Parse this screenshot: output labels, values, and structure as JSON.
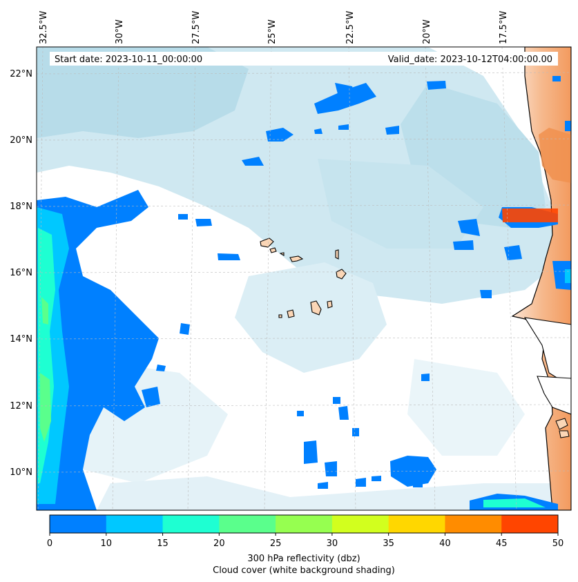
{
  "info": {
    "start_label": "Start date: 2023-10-11_00:00:00",
    "valid_label": "Valid_date: 2023-10-12T04:00:00.00"
  },
  "lon_ticks": [
    "32.5°W",
    "30°W",
    "27.5°W",
    "25°W",
    "22.5°W",
    "20°W",
    "17.5°W"
  ],
  "lat_ticks": [
    "22°N",
    "20°N",
    "18°N",
    "16°N",
    "14°N",
    "12°N",
    "10°N"
  ],
  "colorbar": {
    "tick_labels": [
      "0",
      "10",
      "15",
      "20",
      "25",
      "30",
      "35",
      "40",
      "45",
      "50"
    ],
    "colors": [
      "#0080ff",
      "#00c8ff",
      "#1effd2",
      "#5aff8c",
      "#96ff50",
      "#d2ff1e",
      "#ffd700",
      "#ff8c00",
      "#ff4500"
    ],
    "title_line1": "300 hPa reflectivity (dbz)",
    "title_line2": "Cloud cover (white background shading)"
  }
}
